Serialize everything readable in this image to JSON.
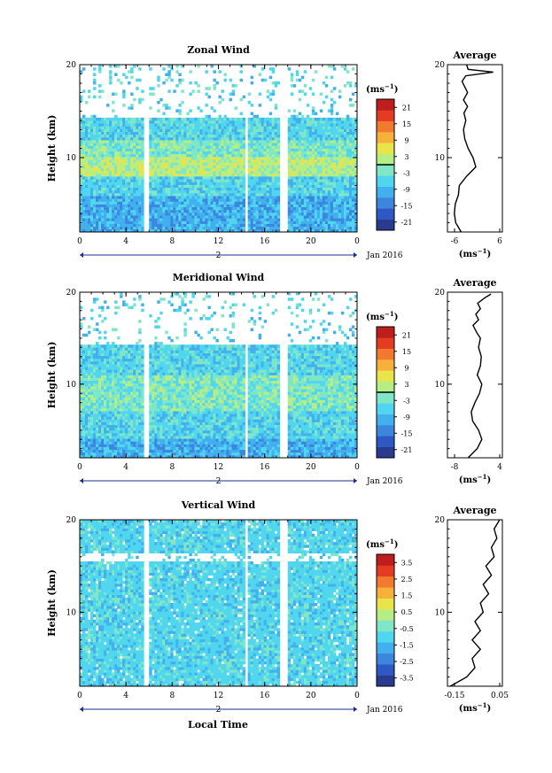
{
  "figure": {
    "xlabel": "Local Time",
    "date_label": "Jan 2016",
    "day_label": "2",
    "avg_title": "Average",
    "unit_text": "(ms",
    "unit_exp": "−1",
    "colorbar_unit": "(ms",
    "colors": [
      "#2a3a8f",
      "#2f58c4",
      "#3c86e0",
      "#42b0ee",
      "#50d6ee",
      "#7fe6c8",
      "#b6ee86",
      "#e8e44a",
      "#f7b13a",
      "#f27a2e",
      "#e43b23",
      "#bf1e1e"
    ]
  },
  "chart_data": [
    {
      "type": "heatmap",
      "title": "Zonal Wind",
      "ylabel": "Height (km)",
      "x_ticks": [
        "0",
        "4",
        "8",
        "12",
        "16",
        "20",
        "0"
      ],
      "y_ticks": [
        "20",
        "10"
      ],
      "xlim": [
        0,
        24
      ],
      "ylim": [
        2,
        20
      ],
      "gaps_hours": [
        [
          5.6,
          5.9
        ],
        [
          14.3,
          14.6
        ],
        [
          17.3,
          18.0
        ]
      ],
      "top_height_km": 14.2,
      "colorbar": {
        "labels": [
          "21",
          "15",
          "9",
          "3",
          "-3",
          "-9",
          "-15",
          "-21"
        ],
        "range": [
          -24,
          24
        ],
        "zero_line": true
      },
      "average": {
        "title": "Average",
        "x_ticks": [
          "-6",
          "6"
        ],
        "xlim": [
          -6,
          6
        ],
        "y_ticks": [
          "20",
          "10"
        ],
        "ylim": [
          2,
          20
        ],
        "profile": [
          [
            -3.0,
            2
          ],
          [
            -4.2,
            3
          ],
          [
            -4.5,
            4
          ],
          [
            -4.3,
            5
          ],
          [
            -3.6,
            6
          ],
          [
            -3.4,
            7
          ],
          [
            -1.8,
            8
          ],
          [
            0.2,
            9
          ],
          [
            -0.4,
            10
          ],
          [
            -1.5,
            11
          ],
          [
            -2.2,
            12
          ],
          [
            -2.5,
            13
          ],
          [
            -2.0,
            14
          ],
          [
            -2.4,
            14.8
          ],
          [
            -1.6,
            15.5
          ],
          [
            -2.5,
            16.2
          ],
          [
            -1.6,
            17
          ],
          [
            -2.2,
            17.6
          ],
          [
            -2.8,
            18.2
          ],
          [
            -2.0,
            18.8
          ],
          [
            4.0,
            19.2
          ],
          [
            -1.5,
            19.5
          ],
          [
            -1.8,
            20
          ]
        ]
      }
    },
    {
      "type": "heatmap",
      "title": "Meridional Wind",
      "ylabel": "Height (km)",
      "x_ticks": [
        "0",
        "4",
        "8",
        "12",
        "16",
        "20",
        "0"
      ],
      "y_ticks": [
        "20",
        "10"
      ],
      "xlim": [
        0,
        24
      ],
      "ylim": [
        2,
        20
      ],
      "gaps_hours": [
        [
          5.6,
          5.9
        ],
        [
          14.3,
          14.6
        ],
        [
          17.3,
          18.0
        ]
      ],
      "top_height_km": 14.2,
      "colorbar": {
        "labels": [
          "21",
          "15",
          "9",
          "3",
          "-3",
          "-9",
          "-15",
          "-21"
        ],
        "range": [
          -24,
          24
        ],
        "zero_line": true
      },
      "average": {
        "title": "Average",
        "x_ticks": [
          "-8",
          "4"
        ],
        "xlim": [
          -8,
          4
        ],
        "y_ticks": [
          "20",
          "10"
        ],
        "ylim": [
          2,
          20
        ],
        "profile": [
          [
            -3.5,
            2
          ],
          [
            -1.5,
            3
          ],
          [
            -0.5,
            4
          ],
          [
            -1.2,
            5
          ],
          [
            -2.5,
            6
          ],
          [
            -2.8,
            7
          ],
          [
            -2.0,
            8
          ],
          [
            -1.0,
            9
          ],
          [
            -0.5,
            10
          ],
          [
            -1.5,
            11
          ],
          [
            -0.8,
            12
          ],
          [
            -0.6,
            13
          ],
          [
            -1.2,
            14
          ],
          [
            -0.8,
            15
          ],
          [
            -1.6,
            15.6
          ],
          [
            -2.4,
            16.4
          ],
          [
            -1.2,
            17
          ],
          [
            -1.8,
            17.6
          ],
          [
            -0.8,
            18.2
          ],
          [
            -1.4,
            18.8
          ],
          [
            0.2,
            19.4
          ],
          [
            1.5,
            19.8
          ]
        ]
      }
    },
    {
      "type": "heatmap",
      "title": "Vertical Wind",
      "ylabel": "Height (km)",
      "x_ticks": [
        "0",
        "4",
        "8",
        "12",
        "16",
        "20",
        "0"
      ],
      "y_ticks": [
        "20",
        "10"
      ],
      "xlim": [
        0,
        24
      ],
      "ylim": [
        2,
        20
      ],
      "gaps_hours": [
        [
          5.6,
          5.9
        ],
        [
          14.3,
          14.6
        ],
        [
          17.3,
          18.0
        ]
      ],
      "top_height_km": 19,
      "colorbar": {
        "labels": [
          "3.5",
          "2.5",
          "1.5",
          "0.5",
          "-0.5",
          "-1.5",
          "-2.5",
          "-3.5"
        ],
        "range": [
          -4,
          4
        ],
        "zero_line": false
      },
      "average": {
        "title": "Average",
        "x_ticks": [
          "-0.15",
          "0.05"
        ],
        "xlim": [
          -0.15,
          0.05
        ],
        "y_ticks": [
          "20",
          "10"
        ],
        "ylim": [
          2,
          20
        ],
        "profile": [
          [
            -0.14,
            2
          ],
          [
            -0.08,
            3
          ],
          [
            -0.05,
            4
          ],
          [
            -0.06,
            5
          ],
          [
            -0.03,
            6
          ],
          [
            -0.06,
            7
          ],
          [
            -0.03,
            8
          ],
          [
            -0.05,
            9
          ],
          [
            -0.02,
            10
          ],
          [
            -0.03,
            11
          ],
          [
            0.0,
            12
          ],
          [
            -0.02,
            13
          ],
          [
            0.01,
            14
          ],
          [
            -0.01,
            15
          ],
          [
            0.02,
            16
          ],
          [
            0.01,
            17
          ],
          [
            0.03,
            18
          ],
          [
            0.02,
            19
          ],
          [
            0.04,
            20
          ]
        ]
      }
    }
  ]
}
